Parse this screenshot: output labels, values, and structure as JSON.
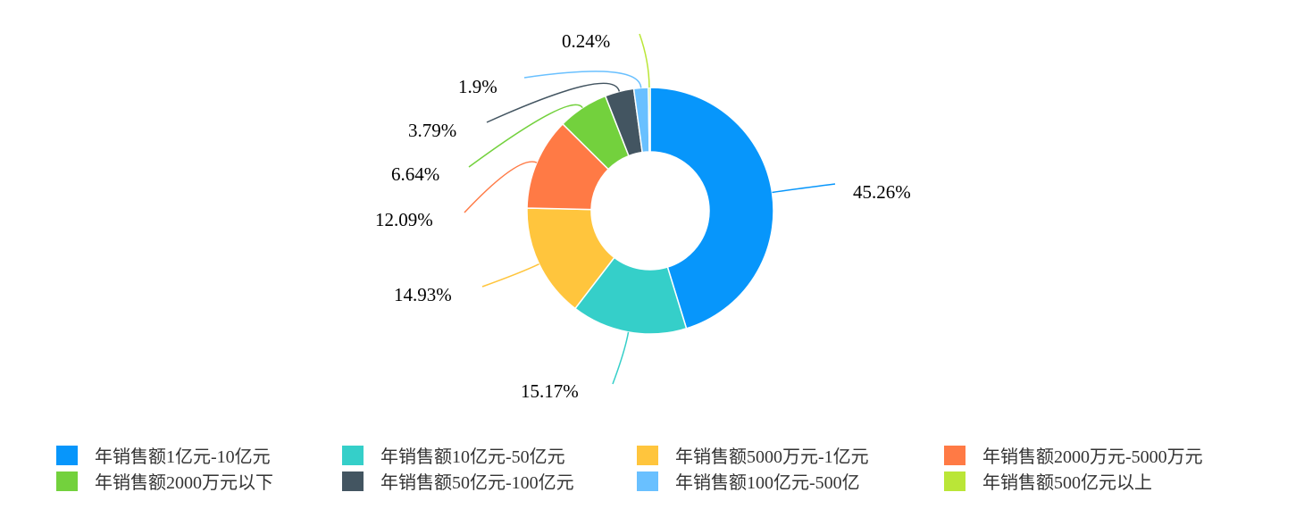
{
  "chart_data": {
    "type": "pie",
    "subtype": "donut",
    "start": "top, clockwise",
    "legend_position": "bottom",
    "series": [
      {
        "name": "年销售额1亿元-10亿元",
        "value": 45.26,
        "label": "45.26%",
        "color": "#0796FB"
      },
      {
        "name": "年销售额10亿元-50亿元",
        "value": 15.17,
        "label": "15.17%",
        "color": "#35CFC9"
      },
      {
        "name": "年销售额5000万元-1亿元",
        "value": 14.93,
        "label": "14.93%",
        "color": "#FFC53D"
      },
      {
        "name": "年销售额2000万元-5000万元",
        "value": 12.09,
        "label": "12.09%",
        "color": "#FF7A45"
      },
      {
        "name": "年销售额2000万元以下",
        "value": 6.64,
        "label": "6.64%",
        "color": "#73D13D"
      },
      {
        "name": "年销售额50亿元-100亿元",
        "value": 3.79,
        "label": "3.79%",
        "color": "#435561"
      },
      {
        "name": "年销售额100亿元-500亿",
        "value": 1.9,
        "label": "1.9%",
        "color": "#69C0FF"
      },
      {
        "name": "年销售额500亿元以上",
        "value": 0.24,
        "label": "0.24%",
        "color": "#BAE637"
      }
    ]
  }
}
